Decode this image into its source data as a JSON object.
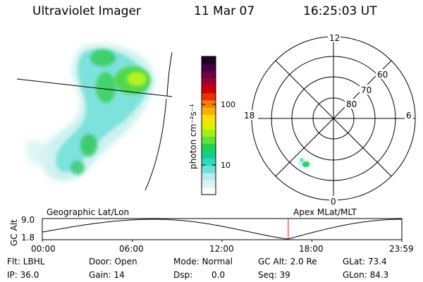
{
  "header": {
    "instrument": "Ultraviolet Imager",
    "date": "11 Mar 07",
    "time": "16:25:03 UT"
  },
  "colorbar": {
    "unit_label": "photon cm⁻²s⁻¹",
    "tick_labels": [
      "100",
      "10"
    ],
    "colors": [
      "#ffffff",
      "#d8f4f4",
      "#b8ecec",
      "#70e0d8",
      "#30d8c0",
      "#10d090",
      "#20d050",
      "#60e030",
      "#a0f020",
      "#e0f000",
      "#f8e000",
      "#f8b000",
      "#f88000",
      "#e83000",
      "#d00000",
      "#a00030",
      "#700040",
      "#400040",
      "#200020"
    ]
  },
  "polar": {
    "mlt_labels": {
      "top": "12",
      "left": "18",
      "right": "6",
      "bottom": "0"
    },
    "lat_labels": [
      "80",
      "70",
      "60"
    ],
    "outer_mlat": 50
  },
  "timeline": {
    "left_title": "Geographic Lat/Lon",
    "right_title": "Apex MLat/MLT",
    "yaxis_label": "GC Alt",
    "ytick_labels": [
      "9.0",
      "1.8"
    ],
    "time_labels": [
      "00:00",
      "06:00",
      "12:00",
      "18:00",
      "23:59"
    ],
    "current_time": "16:25",
    "marker_color": "#ff0000"
  },
  "status": {
    "filter": "Flt: LBHL",
    "door": "Door: Open",
    "mode": "Mode: Normal",
    "gc_alt": "GC Alt: 2.0 Re",
    "glat": "GLat: 73.4",
    "ip": "IP: 36.0",
    "gain": "Gain: 14",
    "dsp": "Dsp:",
    "dsp_value": "0.0",
    "seq": "Seq: 39",
    "glon": "GLon: 84.3"
  }
}
